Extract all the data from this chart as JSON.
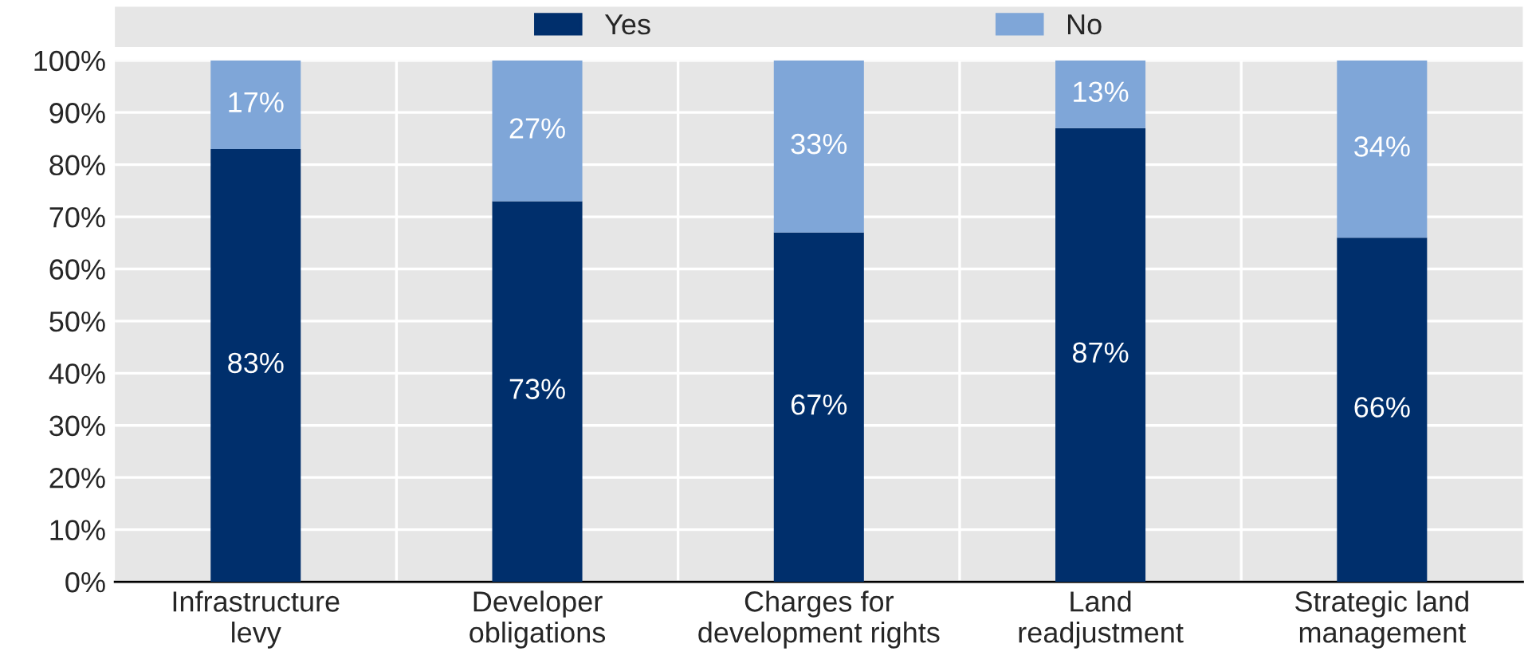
{
  "chart_data": {
    "type": "bar",
    "stacked": true,
    "categories": [
      "Infrastructure\nlevy",
      "Developer\nobligations",
      "Charges for\ndevelopment rights",
      "Land\nreadjustment",
      "Strategic land\nmanagement"
    ],
    "series": [
      {
        "name": "Yes",
        "color": "#002f6c",
        "values": [
          83,
          73,
          67,
          87,
          66
        ],
        "value_labels": [
          "83%",
          "73%",
          "67%",
          "87%",
          "66%"
        ]
      },
      {
        "name": "No",
        "color": "#7fa6d8",
        "values": [
          17,
          27,
          33,
          13,
          34
        ],
        "value_labels": [
          "17%",
          "27%",
          "33%",
          "13%",
          "34%"
        ]
      }
    ],
    "ylim": [
      0,
      100
    ],
    "yticks": [
      {
        "value": 0,
        "label": "0%"
      },
      {
        "value": 10,
        "label": "10%"
      },
      {
        "value": 20,
        "label": "20%"
      },
      {
        "value": 30,
        "label": "30%"
      },
      {
        "value": 40,
        "label": "40%"
      },
      {
        "value": 50,
        "label": "50%"
      },
      {
        "value": 60,
        "label": "60%"
      },
      {
        "value": 70,
        "label": "70%"
      },
      {
        "value": 80,
        "label": "80%"
      },
      {
        "value": 90,
        "label": "90%"
      },
      {
        "value": 100,
        "label": "100%"
      }
    ],
    "grid": true,
    "legend": "top"
  }
}
